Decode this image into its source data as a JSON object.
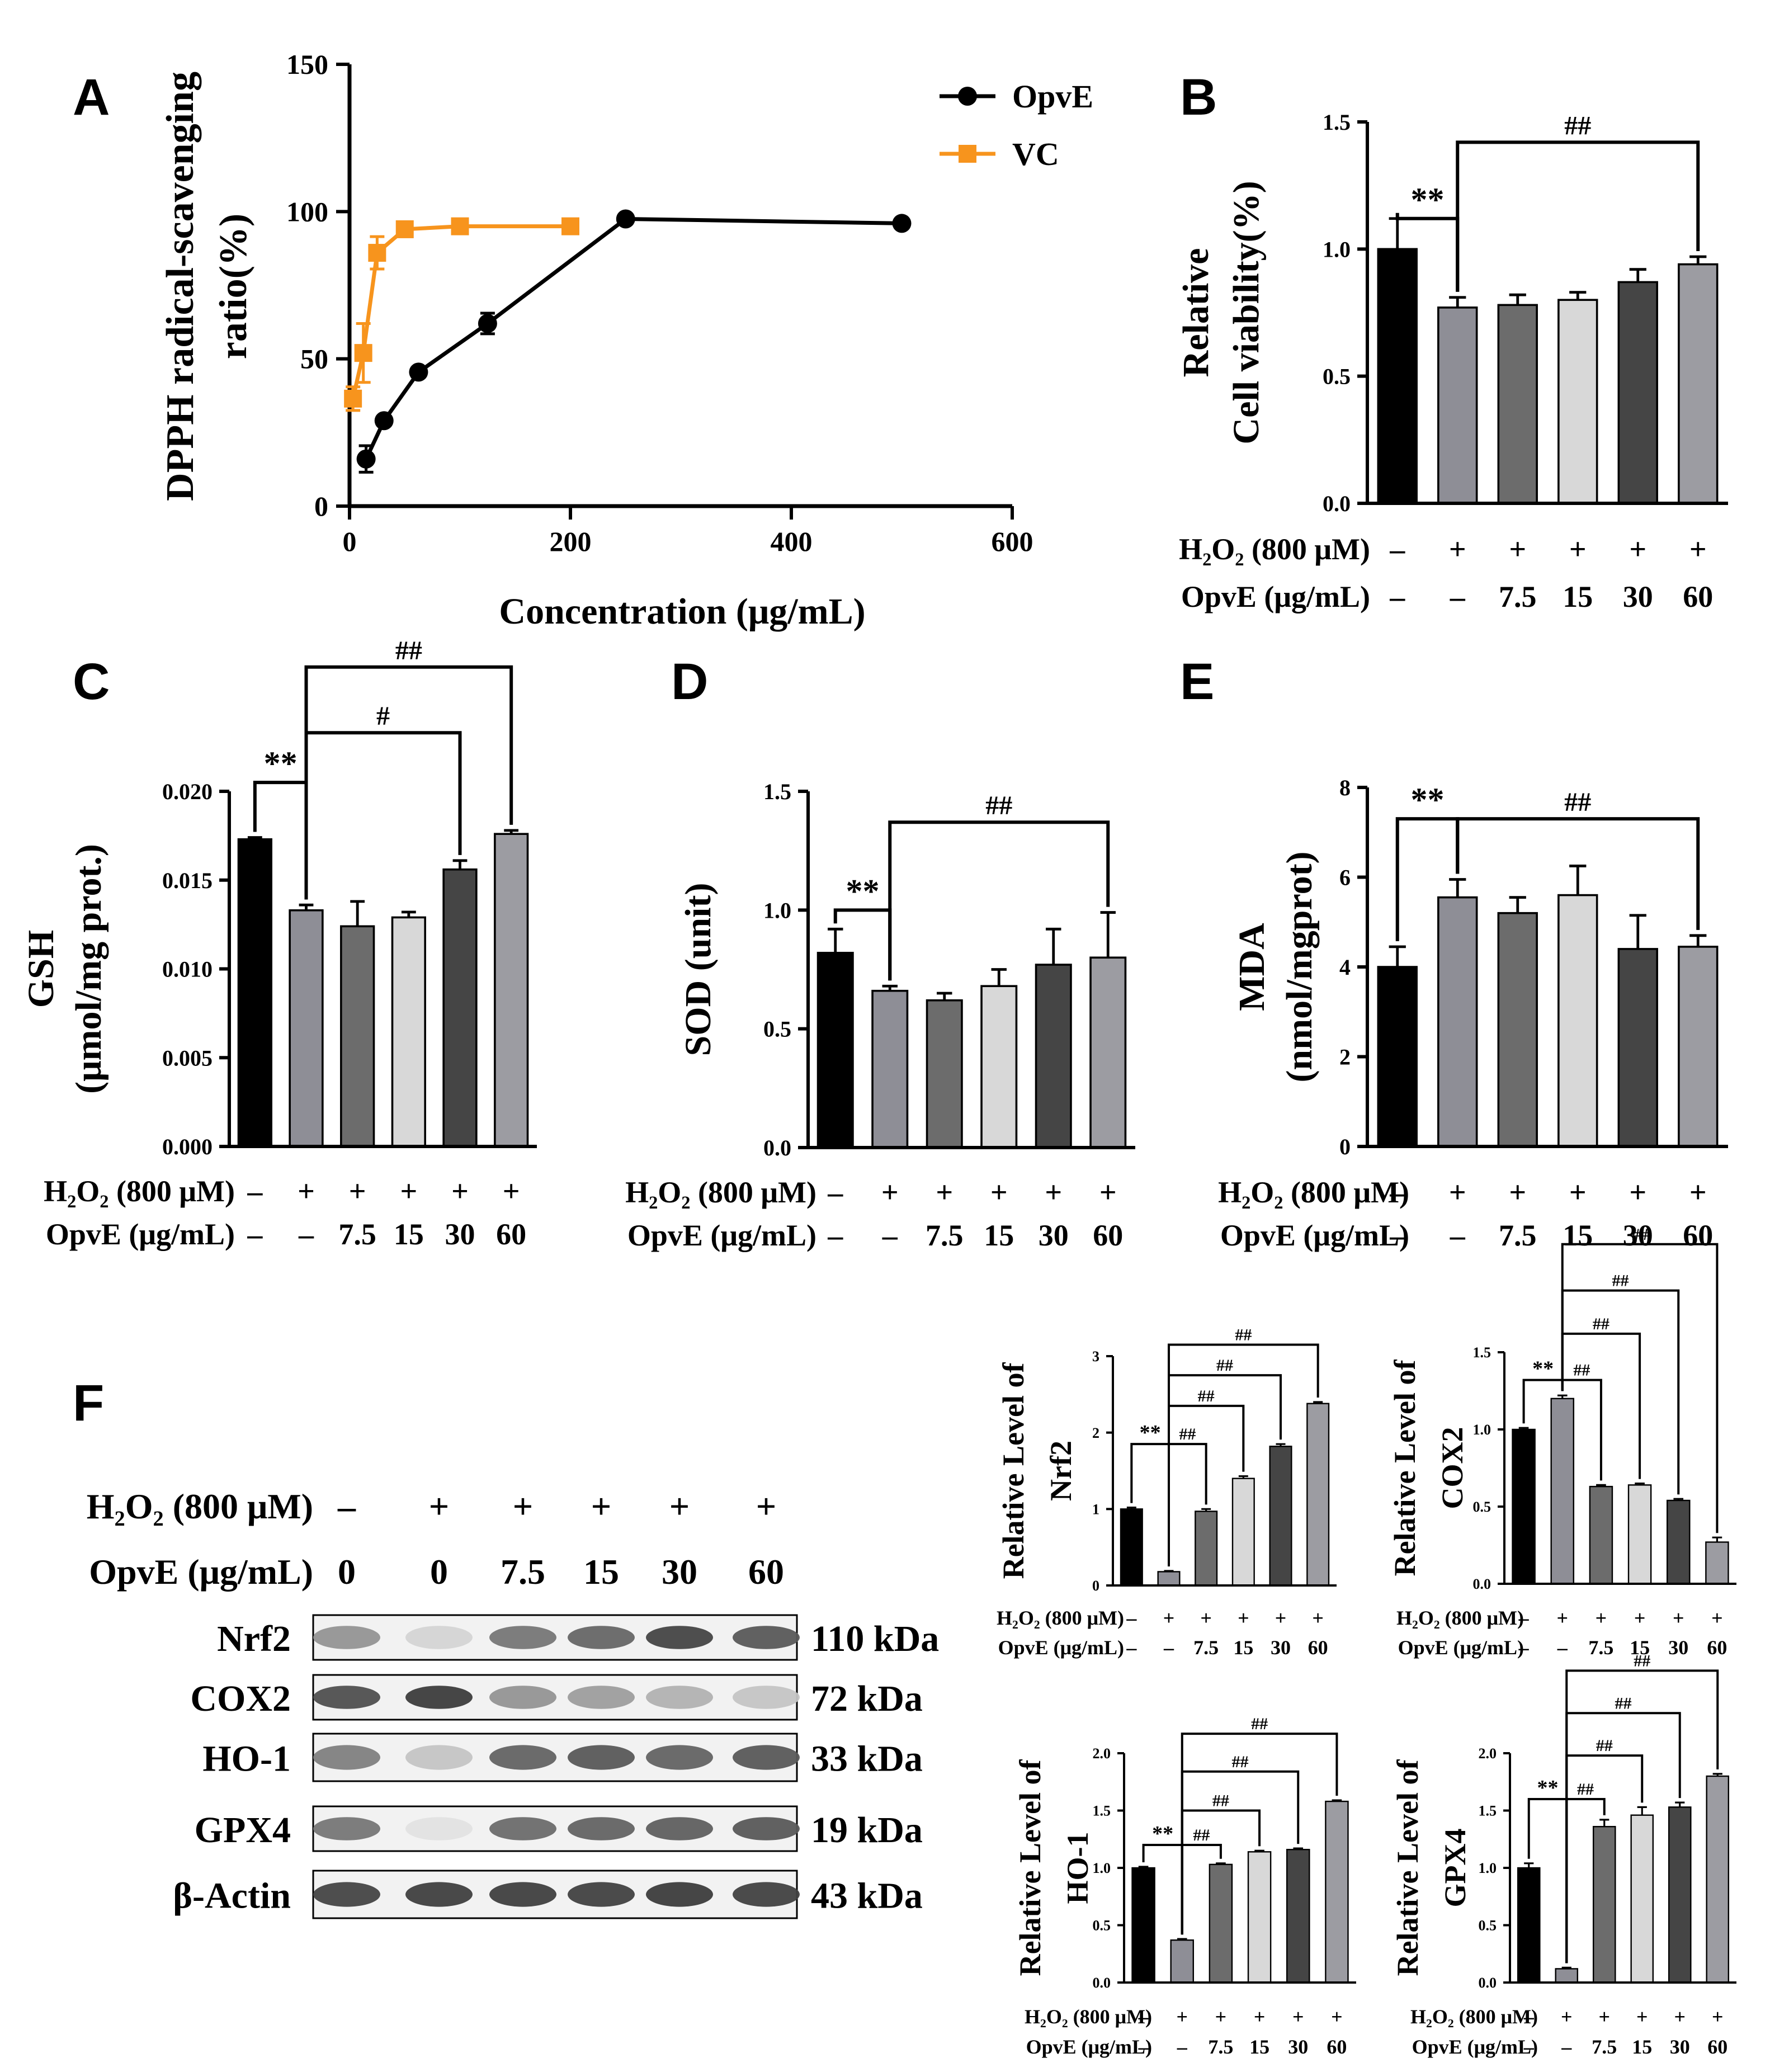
{
  "panels": {
    "A": "A",
    "B": "B",
    "C": "C",
    "D": "D",
    "E": "E",
    "F": "F"
  },
  "colors": {
    "opve": "#000000",
    "vc": "#f7941d",
    "bar_black": "#000000",
    "bar_gray1": "#8e8e96",
    "bar_gray2": "#6c6c6c",
    "bar_light": "#d8d8d8",
    "bar_dark": "#454545",
    "bar_gray3": "#9c9ca2"
  },
  "treatment": {
    "h2o2_label": "H₂O₂ (800 μM)",
    "opve_label": "OpvE (μg/mL)",
    "h2o2": [
      "–",
      "+",
      "+",
      "+",
      "+",
      "+"
    ],
    "opve": [
      "–",
      "–",
      "7.5",
      "15",
      "30",
      "60"
    ]
  },
  "chart_data": [
    {
      "panel": "A",
      "type": "line",
      "title": "",
      "xlabel": "Concentration (μg/mL)",
      "ylabel_line1": "DPPH radical-scavenging",
      "ylabel_line2": "ratio(%)",
      "xlim": [
        0,
        600
      ],
      "ylim": [
        0,
        150
      ],
      "xticks": [
        0,
        200,
        400,
        600
      ],
      "yticks": [
        0,
        50,
        100,
        150
      ],
      "legend_position": "top-right",
      "series": [
        {
          "name": "OpvE",
          "marker": "circle",
          "x": [
            15,
            31.25,
            62.5,
            125,
            250,
            500
          ],
          "y": [
            16,
            29,
            45.5,
            62,
            97.5,
            96
          ],
          "err": [
            4.5,
            1.5,
            1.5,
            3.5,
            1,
            1
          ]
        },
        {
          "name": "VC",
          "marker": "square",
          "x": [
            3.125,
            12.5,
            25,
            50,
            100,
            200
          ],
          "y": [
            36.5,
            52,
            86,
            94,
            95,
            95
          ],
          "err": [
            4,
            10,
            5.5,
            1.5,
            1,
            1
          ]
        }
      ]
    },
    {
      "panel": "B",
      "type": "bar",
      "ylabel_line1": "Relative",
      "ylabel_line2": "Cell viability(%)",
      "ylim": [
        0,
        1.5
      ],
      "yticks": [
        "0.0",
        "0.5",
        "1.0",
        "1.5"
      ],
      "ytick_values": [
        0,
        0.5,
        1.0,
        1.5
      ],
      "values": [
        1.0,
        0.77,
        0.78,
        0.8,
        0.87,
        0.94
      ],
      "err": [
        0.12,
        0.04,
        0.04,
        0.03,
        0.05,
        0.03
      ],
      "brackets": [
        {
          "from": 0,
          "to": 1,
          "label": "**",
          "y": 1.12
        },
        {
          "from": 1,
          "to": 5,
          "label": "##",
          "y": 1.42
        }
      ]
    },
    {
      "panel": "C",
      "type": "bar",
      "ylabel_line1": "GSH",
      "ylabel_line2": "(μmol/mg prot.)",
      "ylim": [
        0,
        0.02
      ],
      "yticks": [
        "0.000",
        "0.005",
        "0.010",
        "0.015",
        "0.020"
      ],
      "ytick_values": [
        0,
        0.005,
        0.01,
        0.015,
        0.02
      ],
      "values": [
        0.0173,
        0.0133,
        0.0124,
        0.0129,
        0.0156,
        0.0176
      ],
      "err": [
        0.0001,
        0.0003,
        0.0014,
        0.0003,
        0.0005,
        0.0002
      ],
      "brackets": [
        {
          "from": 0,
          "to": 1,
          "label": "**",
          "y": 0.0205
        },
        {
          "from": 1,
          "to": 4,
          "label": "#",
          "y": 0.0233
        },
        {
          "from": 1,
          "to": 5,
          "label": "##",
          "y": 0.027
        }
      ]
    },
    {
      "panel": "D",
      "type": "bar",
      "ylabel_line1": "SOD (unit)",
      "ylabel_line2": "",
      "ylim": [
        0,
        1.5
      ],
      "yticks": [
        "0.0",
        "0.5",
        "1.0",
        "1.5"
      ],
      "ytick_values": [
        0,
        0.5,
        1.0,
        1.5
      ],
      "values": [
        0.82,
        0.66,
        0.62,
        0.68,
        0.77,
        0.8
      ],
      "err": [
        0.1,
        0.02,
        0.03,
        0.07,
        0.15,
        0.19
      ],
      "brackets": [
        {
          "from": 0,
          "to": 1,
          "label": "**",
          "y": 1.0
        },
        {
          "from": 1,
          "to": 5,
          "label": "##",
          "y": 1.37
        }
      ]
    },
    {
      "panel": "E",
      "type": "bar",
      "ylabel_line1": "MDA",
      "ylabel_line2": "(nmol/mgprot)",
      "ylim": [
        0,
        8
      ],
      "yticks": [
        "0",
        "2",
        "4",
        "6",
        "8"
      ],
      "ytick_values": [
        0,
        2,
        4,
        6,
        8
      ],
      "values": [
        4.0,
        5.55,
        5.2,
        5.6,
        4.4,
        4.45
      ],
      "err": [
        0.45,
        0.4,
        0.35,
        0.65,
        0.75,
        0.25
      ],
      "brackets": [
        {
          "from": 0,
          "to": 1,
          "label": "**",
          "y": 7.3
        },
        {
          "from": 1,
          "to": 5,
          "label": "##",
          "y": 7.3
        }
      ]
    },
    {
      "panel": "F-Nrf2",
      "type": "bar",
      "ylabel_line1": "Relative Level of",
      "ylabel_line2": "Nrf2",
      "ylim": [
        0,
        3
      ],
      "yticks": [
        "0",
        "1",
        "2",
        "3"
      ],
      "ytick_values": [
        0,
        1,
        2,
        3
      ],
      "values": [
        1.0,
        0.18,
        0.97,
        1.4,
        1.82,
        2.38
      ],
      "err": [
        0.02,
        0.01,
        0.03,
        0.03,
        0.03,
        0.02
      ],
      "brackets": [
        {
          "from": 0,
          "to": 1,
          "label": "**",
          "y": 1.85
        },
        {
          "from": 1,
          "to": 2,
          "label": "##",
          "y": 1.85
        },
        {
          "from": 1,
          "to": 3,
          "label": "##",
          "y": 2.35
        },
        {
          "from": 1,
          "to": 4,
          "label": "##",
          "y": 2.75
        },
        {
          "from": 1,
          "to": 5,
          "label": "##",
          "y": 3.15
        }
      ]
    },
    {
      "panel": "F-COX2",
      "type": "bar",
      "ylabel_line1": "Relative Level of",
      "ylabel_line2": "COX2",
      "ylim": [
        0,
        1.5
      ],
      "yticks": [
        "0.0",
        "0.5",
        "1.0",
        "1.5"
      ],
      "ytick_values": [
        0,
        0.5,
        1.0,
        1.5
      ],
      "values": [
        1.0,
        1.2,
        0.63,
        0.64,
        0.54,
        0.27
      ],
      "err": [
        0.01,
        0.02,
        0.01,
        0.01,
        0.01,
        0.03
      ],
      "brackets": [
        {
          "from": 0,
          "to": 1,
          "label": "**",
          "y": 1.32
        },
        {
          "from": 1,
          "to": 2,
          "label": "##",
          "y": 1.32
        },
        {
          "from": 1,
          "to": 3,
          "label": "##",
          "y": 1.62
        },
        {
          "from": 1,
          "to": 4,
          "label": "##",
          "y": 1.9
        },
        {
          "from": 1,
          "to": 5,
          "label": "##",
          "y": 2.2
        }
      ]
    },
    {
      "panel": "F-HO-1",
      "type": "bar",
      "ylabel_line1": "Relative Level of",
      "ylabel_line2": "HO-1",
      "ylim": [
        0,
        2
      ],
      "yticks": [
        "0.0",
        "0.5",
        "1.0",
        "1.5",
        "2.0"
      ],
      "ytick_values": [
        0,
        0.5,
        1.0,
        1.5,
        2.0
      ],
      "values": [
        1.0,
        0.37,
        1.03,
        1.14,
        1.16,
        1.58
      ],
      "err": [
        0.01,
        0.01,
        0.01,
        0.01,
        0.01,
        0.01
      ],
      "brackets": [
        {
          "from": 0,
          "to": 1,
          "label": "**",
          "y": 1.2
        },
        {
          "from": 1,
          "to": 2,
          "label": "##",
          "y": 1.2
        },
        {
          "from": 1,
          "to": 3,
          "label": "##",
          "y": 1.5
        },
        {
          "from": 1,
          "to": 4,
          "label": "##",
          "y": 1.84
        },
        {
          "from": 1,
          "to": 5,
          "label": "##",
          "y": 2.17
        }
      ]
    },
    {
      "panel": "F-GPX4",
      "type": "bar",
      "ylabel_line1": "Relative Level of",
      "ylabel_line2": "GPX4",
      "ylim": [
        0,
        2
      ],
      "yticks": [
        "0.0",
        "0.5",
        "1.0",
        "1.5",
        "2.0"
      ],
      "ytick_values": [
        0,
        0.5,
        1.0,
        1.5,
        2.0
      ],
      "values": [
        1.0,
        0.12,
        1.36,
        1.46,
        1.53,
        1.8
      ],
      "err": [
        0.04,
        0.01,
        0.06,
        0.07,
        0.04,
        0.02
      ],
      "brackets": [
        {
          "from": 0,
          "to": 1,
          "label": "**",
          "y": 1.6
        },
        {
          "from": 1,
          "to": 2,
          "label": "##",
          "y": 1.6
        },
        {
          "from": 1,
          "to": 3,
          "label": "##",
          "y": 1.98
        },
        {
          "from": 1,
          "to": 4,
          "label": "##",
          "y": 2.35
        },
        {
          "from": 1,
          "to": 5,
          "label": "##",
          "y": 2.72
        }
      ]
    }
  ],
  "western_blot": {
    "h2o2_label": "H₂O₂ (800 μM)",
    "opve_label": "OpvE (μg/mL)",
    "h2o2": [
      "–",
      "+",
      "+",
      "+",
      "+",
      "+"
    ],
    "opve": [
      "0",
      "0",
      "7.5",
      "15",
      "30",
      "60"
    ],
    "rows": [
      {
        "name": "Nrf2",
        "kda": "110 kDa",
        "intensity": [
          0.45,
          0.12,
          0.6,
          0.68,
          0.85,
          0.75
        ]
      },
      {
        "name": "COX2",
        "kda": "72 kDa",
        "intensity": [
          0.8,
          0.9,
          0.45,
          0.4,
          0.3,
          0.2
        ]
      },
      {
        "name": "HO-1",
        "kda": "33 kDa",
        "intensity": [
          0.55,
          0.2,
          0.7,
          0.75,
          0.7,
          0.75
        ]
      },
      {
        "name": "GPX4",
        "kda": "19 kDa",
        "intensity": [
          0.6,
          0.05,
          0.65,
          0.7,
          0.72,
          0.75
        ]
      },
      {
        "name": "β-Actin",
        "kda": "43 kDa",
        "intensity": [
          0.85,
          0.88,
          0.88,
          0.87,
          0.9,
          0.87
        ]
      }
    ]
  }
}
